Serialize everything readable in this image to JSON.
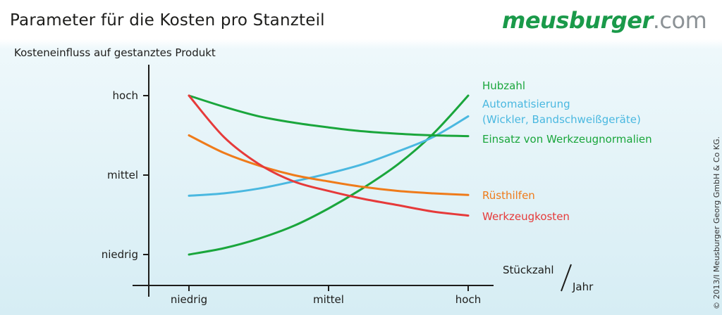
{
  "header": {
    "title": "Parameter für die Kosten pro Stanzteil",
    "logo_brand": "meusburger",
    "logo_tld": ".com"
  },
  "copyright": "© 2013/I Meusburger Georg GmbH & Co KG.",
  "chart_data": {
    "type": "line",
    "ylabel": "Kosteneinfluss auf gestanztes Produkt",
    "xlabel_part1": "Stückzahl",
    "xlabel_separator": "/",
    "xlabel_part2": "Jahr",
    "x_ticks": [
      "niedrig",
      "mittel",
      "hoch"
    ],
    "y_ticks": [
      "niedrig",
      "mittel",
      "hoch"
    ],
    "x": [
      0,
      0.125,
      0.25,
      0.375,
      0.5,
      0.625,
      0.75,
      0.875,
      1
    ],
    "xlim": [
      0,
      1
    ],
    "ylim": [
      0,
      1
    ],
    "grid": false,
    "legend": "right, labels at line ends",
    "series": [
      {
        "name": "Hubzahl",
        "color": "#1aa63c",
        "values": [
          0,
          0.04,
          0.1,
          0.18,
          0.29,
          0.42,
          0.57,
          0.76,
          1
        ]
      },
      {
        "name": "Automatisierung",
        "name_line2": "(Wickler, Bandschweißgeräte)",
        "color": "#4ab8e0",
        "values": [
          0.37,
          0.385,
          0.415,
          0.46,
          0.51,
          0.57,
          0.65,
          0.74,
          0.87
        ]
      },
      {
        "name": "Einsatz von Werkzeugnormalien",
        "color": "#1aa63c",
        "values": [
          1,
          0.93,
          0.87,
          0.83,
          0.8,
          0.775,
          0.76,
          0.75,
          0.745
        ]
      },
      {
        "name": "Rüsthilfen",
        "color": "#ef7b1a",
        "values": [
          0.75,
          0.64,
          0.56,
          0.5,
          0.46,
          0.425,
          0.4,
          0.385,
          0.375
        ]
      },
      {
        "name": "Werkzeugkosten",
        "color": "#e63a3a",
        "values": [
          1,
          0.74,
          0.57,
          0.46,
          0.4,
          0.35,
          0.31,
          0.27,
          0.245
        ]
      }
    ]
  }
}
